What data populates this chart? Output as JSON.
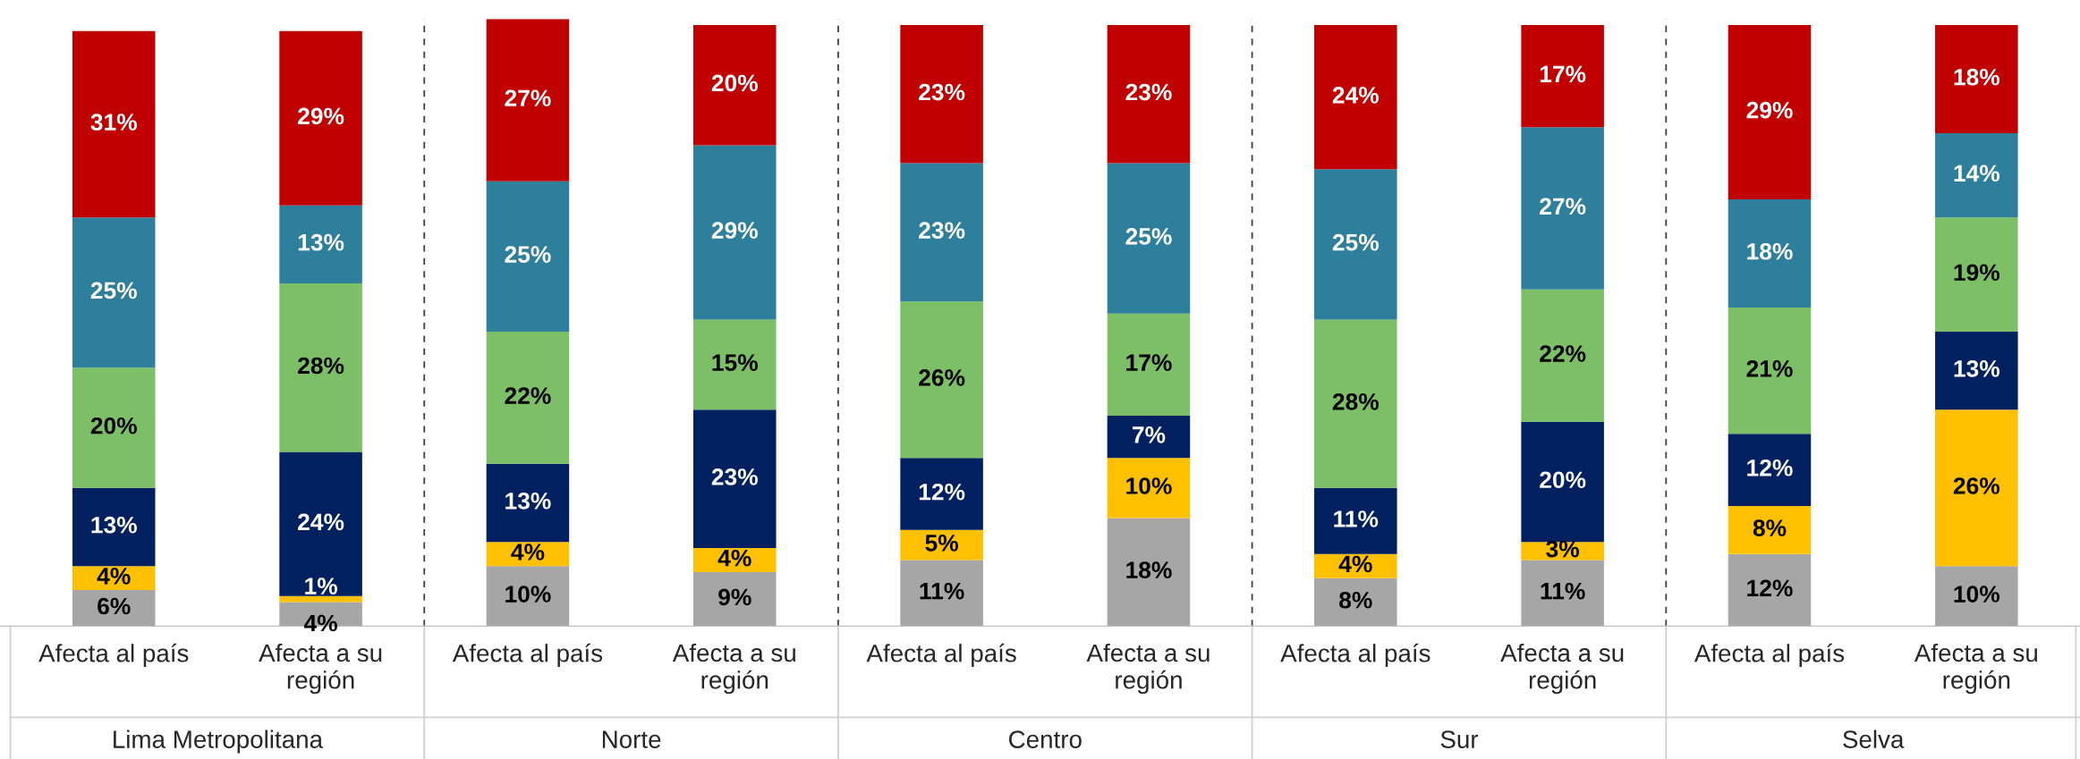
{
  "chart_data": {
    "type": "bar",
    "stacked": true,
    "grid": false,
    "legend": false,
    "categories": [
      "Afecta al país",
      "Afecta a su región",
      "Afecta al país",
      "Afecta a su región",
      "Afecta al país",
      "Afecta a su región",
      "Afecta al país",
      "Afecta a su región",
      "Afecta al país",
      "Afecta a su región"
    ],
    "annotations": [
      "Lima Metropolitana",
      "Norte",
      "Centro",
      "Sur",
      "Selva"
    ],
    "series": [
      {
        "color": "#a6a6a6",
        "values": [
          6,
          4,
          10,
          9,
          11,
          18,
          8,
          11,
          12,
          10
        ],
        "value_labels": [
          "6%",
          "4%",
          "10%",
          "9%",
          "11%",
          "18%",
          "8%",
          "11%",
          "12%",
          "10%"
        ]
      },
      {
        "color": "#ffc000",
        "values": [
          4,
          1,
          4,
          4,
          5,
          10,
          4,
          3,
          8,
          26
        ],
        "value_labels": [
          "4%",
          "1%",
          "4%",
          "4%",
          "5%",
          "10%",
          "4%",
          "3%",
          "8%",
          "26%"
        ]
      },
      {
        "color": "#002060",
        "values": [
          13,
          24,
          13,
          23,
          12,
          7,
          11,
          20,
          12,
          13
        ],
        "value_labels": [
          "13%",
          "24%",
          "13%",
          "23%",
          "12%",
          "7%",
          "11%",
          "20%",
          "12%",
          "13%"
        ]
      },
      {
        "color": "#7dbf67",
        "values": [
          20,
          28,
          22,
          15,
          26,
          17,
          28,
          22,
          21,
          19
        ],
        "value_labels": [
          "20%",
          "28%",
          "22%",
          "15%",
          "26%",
          "17%",
          "28%",
          "22%",
          "21%",
          "19%"
        ]
      },
      {
        "color": "#2e7f9b",
        "values": [
          25,
          13,
          25,
          29,
          23,
          25,
          25,
          27,
          18,
          14
        ],
        "value_labels": [
          "25%",
          "13%",
          "25%",
          "29%",
          "23%",
          "25%",
          "25%",
          "27%",
          "18%",
          "14%"
        ]
      },
      {
        "color": "#c00000",
        "values": [
          31,
          29,
          27,
          20,
          23,
          23,
          24,
          17,
          29,
          18
        ],
        "value_labels": [
          "31%",
          "29%",
          "27%",
          "20%",
          "23%",
          "23%",
          "24%",
          "17%",
          "29%",
          "18%"
        ]
      }
    ]
  }
}
